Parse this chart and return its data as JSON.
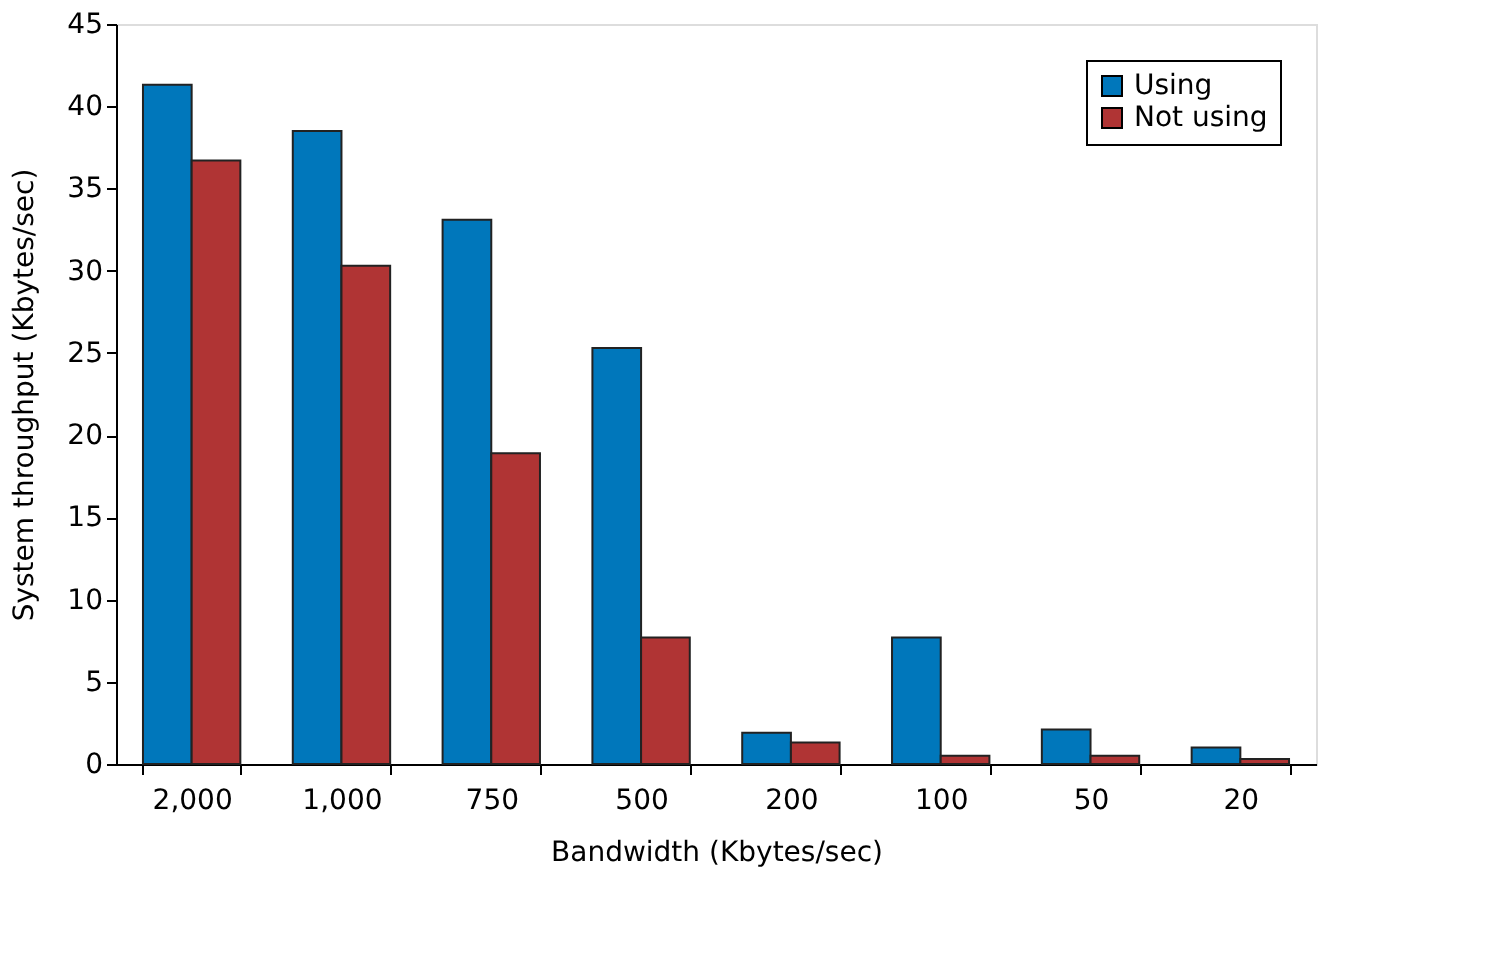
{
  "chart_data": {
    "type": "bar",
    "xlabel": "Bandwidth (Kbytes/sec)",
    "ylabel": "System throughput (Kbytes/sec)",
    "categories": [
      "2,000",
      "1,000",
      "750",
      "500",
      "200",
      "100",
      "50",
      "20"
    ],
    "series": [
      {
        "name": "Using",
        "color": "#0077bb",
        "values": [
          41.3,
          38.5,
          33.1,
          25.3,
          1.9,
          7.7,
          2.1,
          1.0
        ]
      },
      {
        "name": "Not using",
        "color": "#b03434",
        "values": [
          36.7,
          30.3,
          18.9,
          7.7,
          1.3,
          0.5,
          0.5,
          0.3
        ]
      }
    ],
    "ylim": [
      0,
      45
    ],
    "yticks": [
      0,
      5,
      10,
      15,
      20,
      25,
      30,
      35,
      40,
      45
    ],
    "grid": false,
    "legend": "top right"
  }
}
